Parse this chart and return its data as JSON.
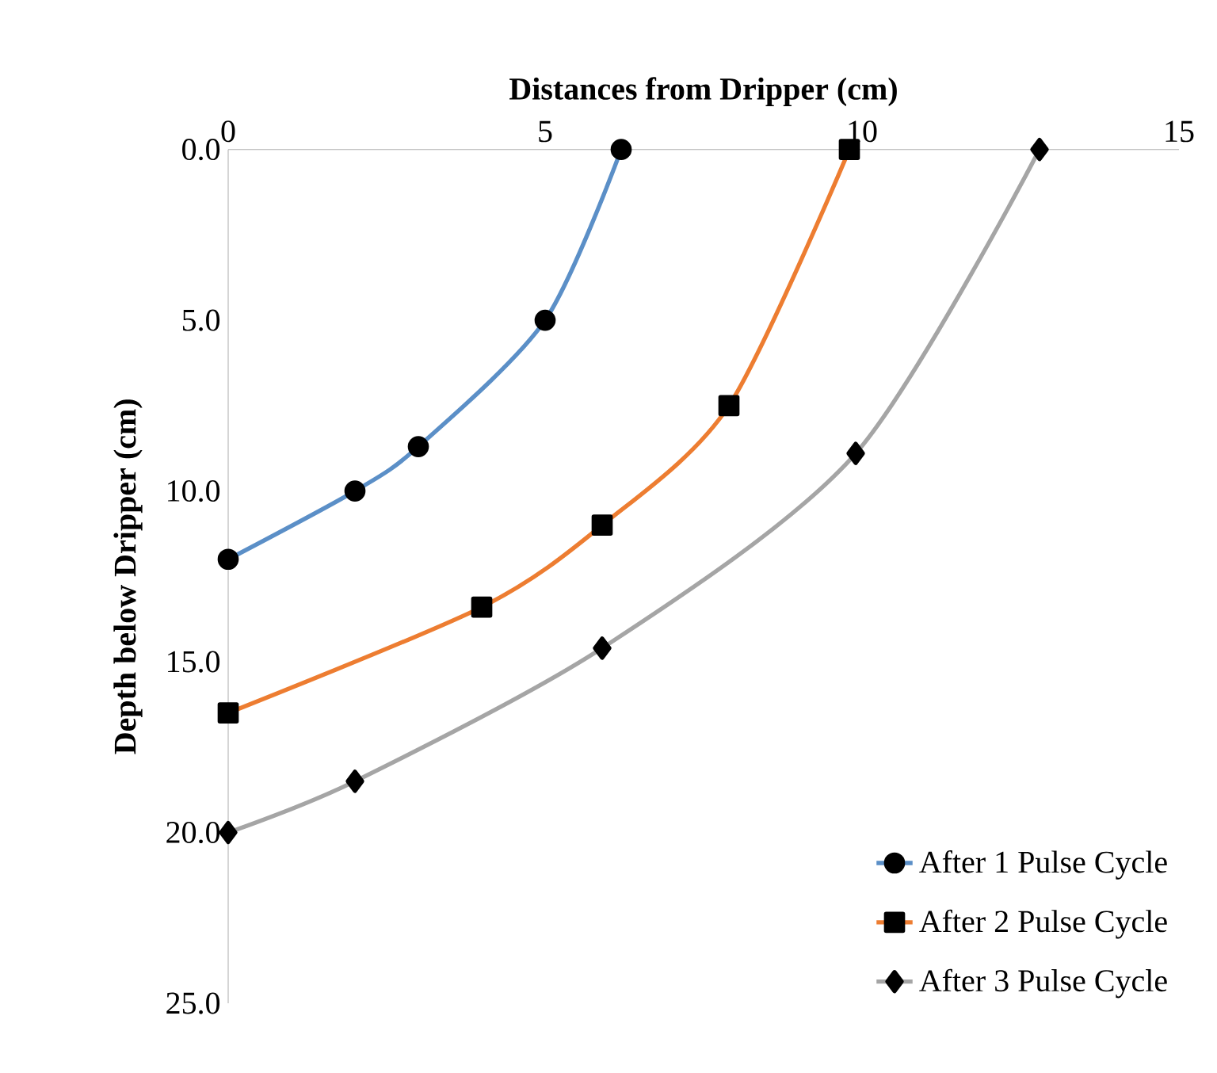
{
  "chart_data": {
    "type": "line",
    "xlabel": "Distances from Dripper (cm)",
    "ylabel": "Depth below Dripper (cm)",
    "xlim": [
      0,
      15
    ],
    "xticks": [
      0,
      5,
      10,
      15
    ],
    "ylim": [
      25,
      0
    ],
    "yticks": [
      {
        "value": 0,
        "label": "0.0"
      },
      {
        "value": 5,
        "label": "5.0"
      },
      {
        "value": 10,
        "label": "10.0"
      },
      {
        "value": 15,
        "label": "15.0"
      },
      {
        "value": 20,
        "label": "20.0"
      },
      {
        "value": 25,
        "label": "25.0"
      }
    ],
    "grid": false,
    "legend": "bottom right",
    "line_style": "solid",
    "series": [
      {
        "name": "After 1 Pulse Cycle",
        "color": "#5b8fc7",
        "marker": "circle",
        "x": [
          6.2,
          5.0,
          3.0,
          2.0,
          0
        ],
        "values": [
          0,
          5.0,
          8.7,
          10.0,
          12.0
        ]
      },
      {
        "name": "After 2 Pulse Cycle",
        "color": "#ed7d31",
        "marker": "square",
        "x": [
          9.8,
          7.9,
          5.9,
          4.0,
          0
        ],
        "values": [
          0,
          7.5,
          11.0,
          13.4,
          16.5
        ]
      },
      {
        "name": "After 3 Pulse Cycle",
        "color": "#a5a5a5",
        "marker": "diamond",
        "x": [
          12.8,
          9.9,
          5.9,
          2.0,
          0
        ],
        "values": [
          0,
          8.9,
          14.6,
          18.5,
          20.0
        ]
      }
    ]
  }
}
